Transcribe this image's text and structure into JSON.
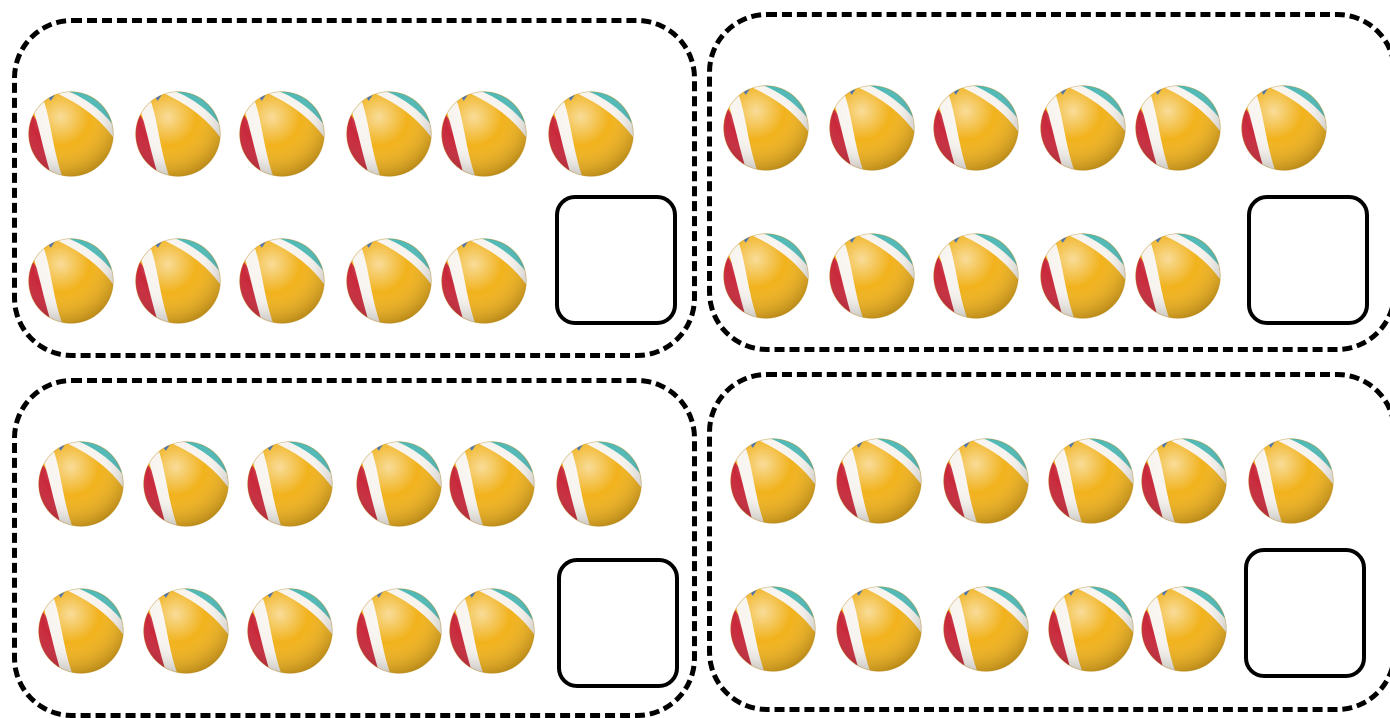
{
  "worksheet": {
    "panels": [
      {
        "id": "panel-1",
        "top_row_count": 6,
        "bottom_row_count": 5,
        "answer": ""
      },
      {
        "id": "panel-2",
        "top_row_count": 6,
        "bottom_row_count": 5,
        "answer": ""
      },
      {
        "id": "panel-3",
        "top_row_count": 6,
        "bottom_row_count": 5,
        "answer": ""
      },
      {
        "id": "panel-4",
        "top_row_count": 6,
        "bottom_row_count": 5,
        "answer": ""
      }
    ],
    "icon": "beach-ball-icon",
    "colors": {
      "ball_red": "#c8283a",
      "ball_yellow": "#f1b21c",
      "ball_teal": "#4fb9b6",
      "ball_blue": "#2f5fa8",
      "border": "#000000"
    }
  }
}
